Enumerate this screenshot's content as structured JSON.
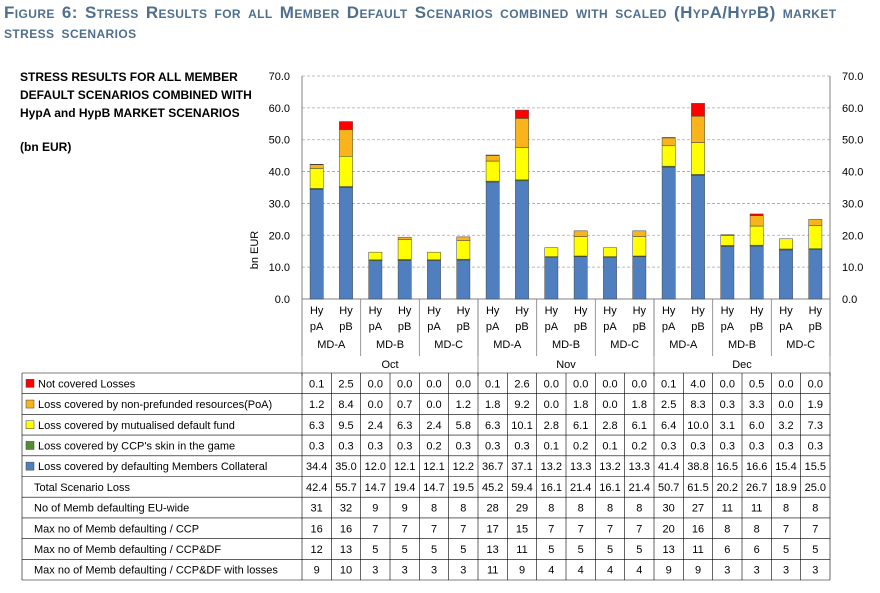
{
  "figure_title": "Figure 6: Stress Results for all Member Default Scenarios combined with scaled (HypA/HypB) market stress scenarios",
  "side_label": {
    "title": "STRESS RESULTS FOR ALL MEMBER DEFAULT SCENARIOS COMBINED WITH HypA and HypB MARKET SCENARIOS",
    "unit": "(bn EUR)"
  },
  "colors": {
    "collateral": "#4f7fbf",
    "skin": "#4f8f2f",
    "mutualised": "#ffff00",
    "non_prefunded": "#f9b31b",
    "not_covered": "#ff0000",
    "grid": "#a6a6a6"
  },
  "chart_data": {
    "type": "bar",
    "stacked": true,
    "ylabel": "bn EUR",
    "ylim": [
      0,
      70
    ],
    "yticks": [
      "0.0",
      "10.0",
      "20.0",
      "30.0",
      "40.0",
      "50.0",
      "60.0",
      "70.0"
    ],
    "grid": true,
    "months": [
      "Oct",
      "Nov",
      "Dec"
    ],
    "scenarios": [
      "MD-A",
      "MD-B",
      "MD-C"
    ],
    "hyp_top": "Hy",
    "hyp_bottom": [
      "pA",
      "pB"
    ],
    "categories": [
      "Oct MD-A HypA",
      "Oct MD-A HypB",
      "Oct MD-B HypA",
      "Oct MD-B HypB",
      "Oct MD-C HypA",
      "Oct MD-C HypB",
      "Nov MD-A HypA",
      "Nov MD-A HypB",
      "Nov MD-B HypA",
      "Nov MD-B HypB",
      "Nov MD-C HypA",
      "Nov MD-C HypB",
      "Dec MD-A HypA",
      "Dec MD-A HypB",
      "Dec MD-B HypA",
      "Dec MD-B HypB",
      "Dec MD-C HypA",
      "Dec MD-C HypB"
    ],
    "series": [
      {
        "key": "collateral",
        "name": "Loss covered by defaulting Members Collateral",
        "values": [
          "34.4",
          "35.0",
          "12.0",
          "12.1",
          "12.1",
          "12.2",
          "36.7",
          "37.1",
          "13.2",
          "13.3",
          "13.2",
          "13.3",
          "41.4",
          "38.8",
          "16.5",
          "16.6",
          "15.4",
          "15.5"
        ]
      },
      {
        "key": "skin",
        "name": "Loss covered by CCP's skin in the game",
        "values": [
          "0.3",
          "0.3",
          "0.3",
          "0.3",
          "0.2",
          "0.3",
          "0.3",
          "0.3",
          "0.1",
          "0.2",
          "0.1",
          "0.2",
          "0.3",
          "0.3",
          "0.3",
          "0.3",
          "0.3",
          "0.3"
        ]
      },
      {
        "key": "mutualised",
        "name": "Loss covered by mutualised default fund",
        "values": [
          "6.3",
          "9.5",
          "2.4",
          "6.3",
          "2.4",
          "5.8",
          "6.3",
          "10.1",
          "2.8",
          "6.1",
          "2.8",
          "6.1",
          "6.4",
          "10.0",
          "3.1",
          "6.0",
          "3.2",
          "7.3"
        ]
      },
      {
        "key": "non_prefunded",
        "name": "Loss covered by non-prefunded resources(PoA)",
        "values": [
          "1.2",
          "8.4",
          "0.0",
          "0.7",
          "0.0",
          "1.2",
          "1.8",
          "9.2",
          "0.0",
          "1.8",
          "0.0",
          "1.8",
          "2.5",
          "8.3",
          "0.3",
          "3.3",
          "0.0",
          "1.9"
        ]
      },
      {
        "key": "not_covered",
        "name": "Not covered Losses",
        "values": [
          "0.1",
          "2.5",
          "0.0",
          "0.0",
          "0.0",
          "0.0",
          "0.1",
          "2.6",
          "0.0",
          "0.0",
          "0.0",
          "0.0",
          "0.1",
          "4.0",
          "0.0",
          "0.5",
          "0.0",
          "0.0"
        ]
      }
    ],
    "table_rows": [
      {
        "label": "Not covered Losses",
        "legend": "not_covered",
        "values": [
          "0.1",
          "2.5",
          "0.0",
          "0.0",
          "0.0",
          "0.0",
          "0.1",
          "2.6",
          "0.0",
          "0.0",
          "0.0",
          "0.0",
          "0.1",
          "4.0",
          "0.0",
          "0.5",
          "0.0",
          "0.0"
        ]
      },
      {
        "label": "Loss covered by non-prefunded resources(PoA)",
        "legend": "non_prefunded",
        "values": [
          "1.2",
          "8.4",
          "0.0",
          "0.7",
          "0.0",
          "1.2",
          "1.8",
          "9.2",
          "0.0",
          "1.8",
          "0.0",
          "1.8",
          "2.5",
          "8.3",
          "0.3",
          "3.3",
          "0.0",
          "1.9"
        ]
      },
      {
        "label": "Loss covered by mutualised default fund",
        "legend": "mutualised",
        "values": [
          "6.3",
          "9.5",
          "2.4",
          "6.3",
          "2.4",
          "5.8",
          "6.3",
          "10.1",
          "2.8",
          "6.1",
          "2.8",
          "6.1",
          "6.4",
          "10.0",
          "3.1",
          "6.0",
          "3.2",
          "7.3"
        ]
      },
      {
        "label": "Loss covered by CCP's skin in the game",
        "legend": "skin",
        "values": [
          "0.3",
          "0.3",
          "0.3",
          "0.3",
          "0.2",
          "0.3",
          "0.3",
          "0.3",
          "0.1",
          "0.2",
          "0.1",
          "0.2",
          "0.3",
          "0.3",
          "0.3",
          "0.3",
          "0.3",
          "0.3"
        ]
      },
      {
        "label": "Loss covered by defaulting Members Collateral",
        "legend": "collateral",
        "values": [
          "34.4",
          "35.0",
          "12.0",
          "12.1",
          "12.1",
          "12.2",
          "36.7",
          "37.1",
          "13.2",
          "13.3",
          "13.2",
          "13.3",
          "41.4",
          "38.8",
          "16.5",
          "16.6",
          "15.4",
          "15.5"
        ]
      },
      {
        "label": "Total Scenario Loss",
        "values": [
          "42.4",
          "55.7",
          "14.7",
          "19.4",
          "14.7",
          "19.5",
          "45.2",
          "59.4",
          "16.1",
          "21.4",
          "16.1",
          "21.4",
          "50.7",
          "61.5",
          "20.2",
          "26.7",
          "18.9",
          "25.0"
        ]
      },
      {
        "label": "No of Memb defaulting EU-wide",
        "values": [
          "31",
          "32",
          "9",
          "9",
          "8",
          "8",
          "28",
          "29",
          "8",
          "8",
          "8",
          "8",
          "30",
          "27",
          "11",
          "11",
          "8",
          "8"
        ]
      },
      {
        "label": "Max no of Memb defaulting / CCP",
        "values": [
          "16",
          "16",
          "7",
          "7",
          "7",
          "7",
          "17",
          "15",
          "7",
          "7",
          "7",
          "7",
          "20",
          "16",
          "8",
          "8",
          "7",
          "7"
        ]
      },
      {
        "label": "Max no of Memb defaulting / CCP&DF",
        "values": [
          "12",
          "13",
          "5",
          "5",
          "5",
          "5",
          "13",
          "11",
          "5",
          "5",
          "5",
          "5",
          "13",
          "11",
          "6",
          "6",
          "5",
          "5"
        ]
      },
      {
        "label": "Max no of Memb defaulting / CCP&DF with losses",
        "values": [
          "9",
          "10",
          "3",
          "3",
          "3",
          "3",
          "11",
          "9",
          "4",
          "4",
          "4",
          "4",
          "9",
          "9",
          "3",
          "3",
          "3",
          "3"
        ]
      }
    ]
  }
}
